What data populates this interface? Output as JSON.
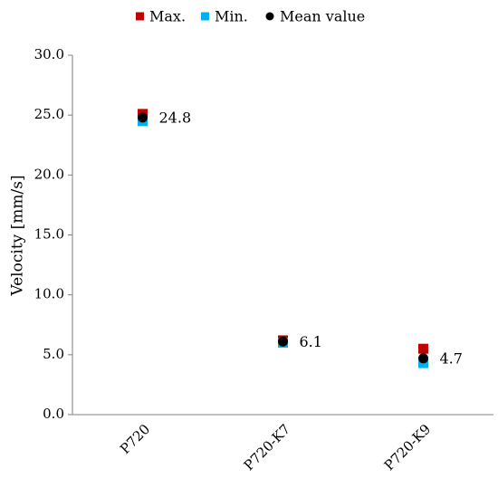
{
  "chart_data": {
    "type": "scatter",
    "categories": [
      "P720",
      "P720-K7",
      "P720-K9"
    ],
    "ylabel": "Velocity [mm/s]",
    "xlabel": "",
    "ylim": [
      0,
      30
    ],
    "yticks": [
      "0.0",
      "5.0",
      "10.0",
      "15.0",
      "20.0",
      "25.0",
      "30.0"
    ],
    "grid": false,
    "legend_position": "top",
    "series": [
      {
        "name": "Max.",
        "color": "#c00000",
        "marker": "square",
        "values": [
          25.1,
          6.2,
          5.5
        ]
      },
      {
        "name": "Min.",
        "color": "#00b0f0",
        "marker": "square",
        "values": [
          24.5,
          6.0,
          4.3
        ]
      },
      {
        "name": "Mean value",
        "color": "#000000",
        "marker": "circle",
        "values": [
          24.8,
          6.1,
          4.7
        ]
      }
    ],
    "data_labels": [
      "24.8",
      "6.1",
      "4.7"
    ]
  }
}
